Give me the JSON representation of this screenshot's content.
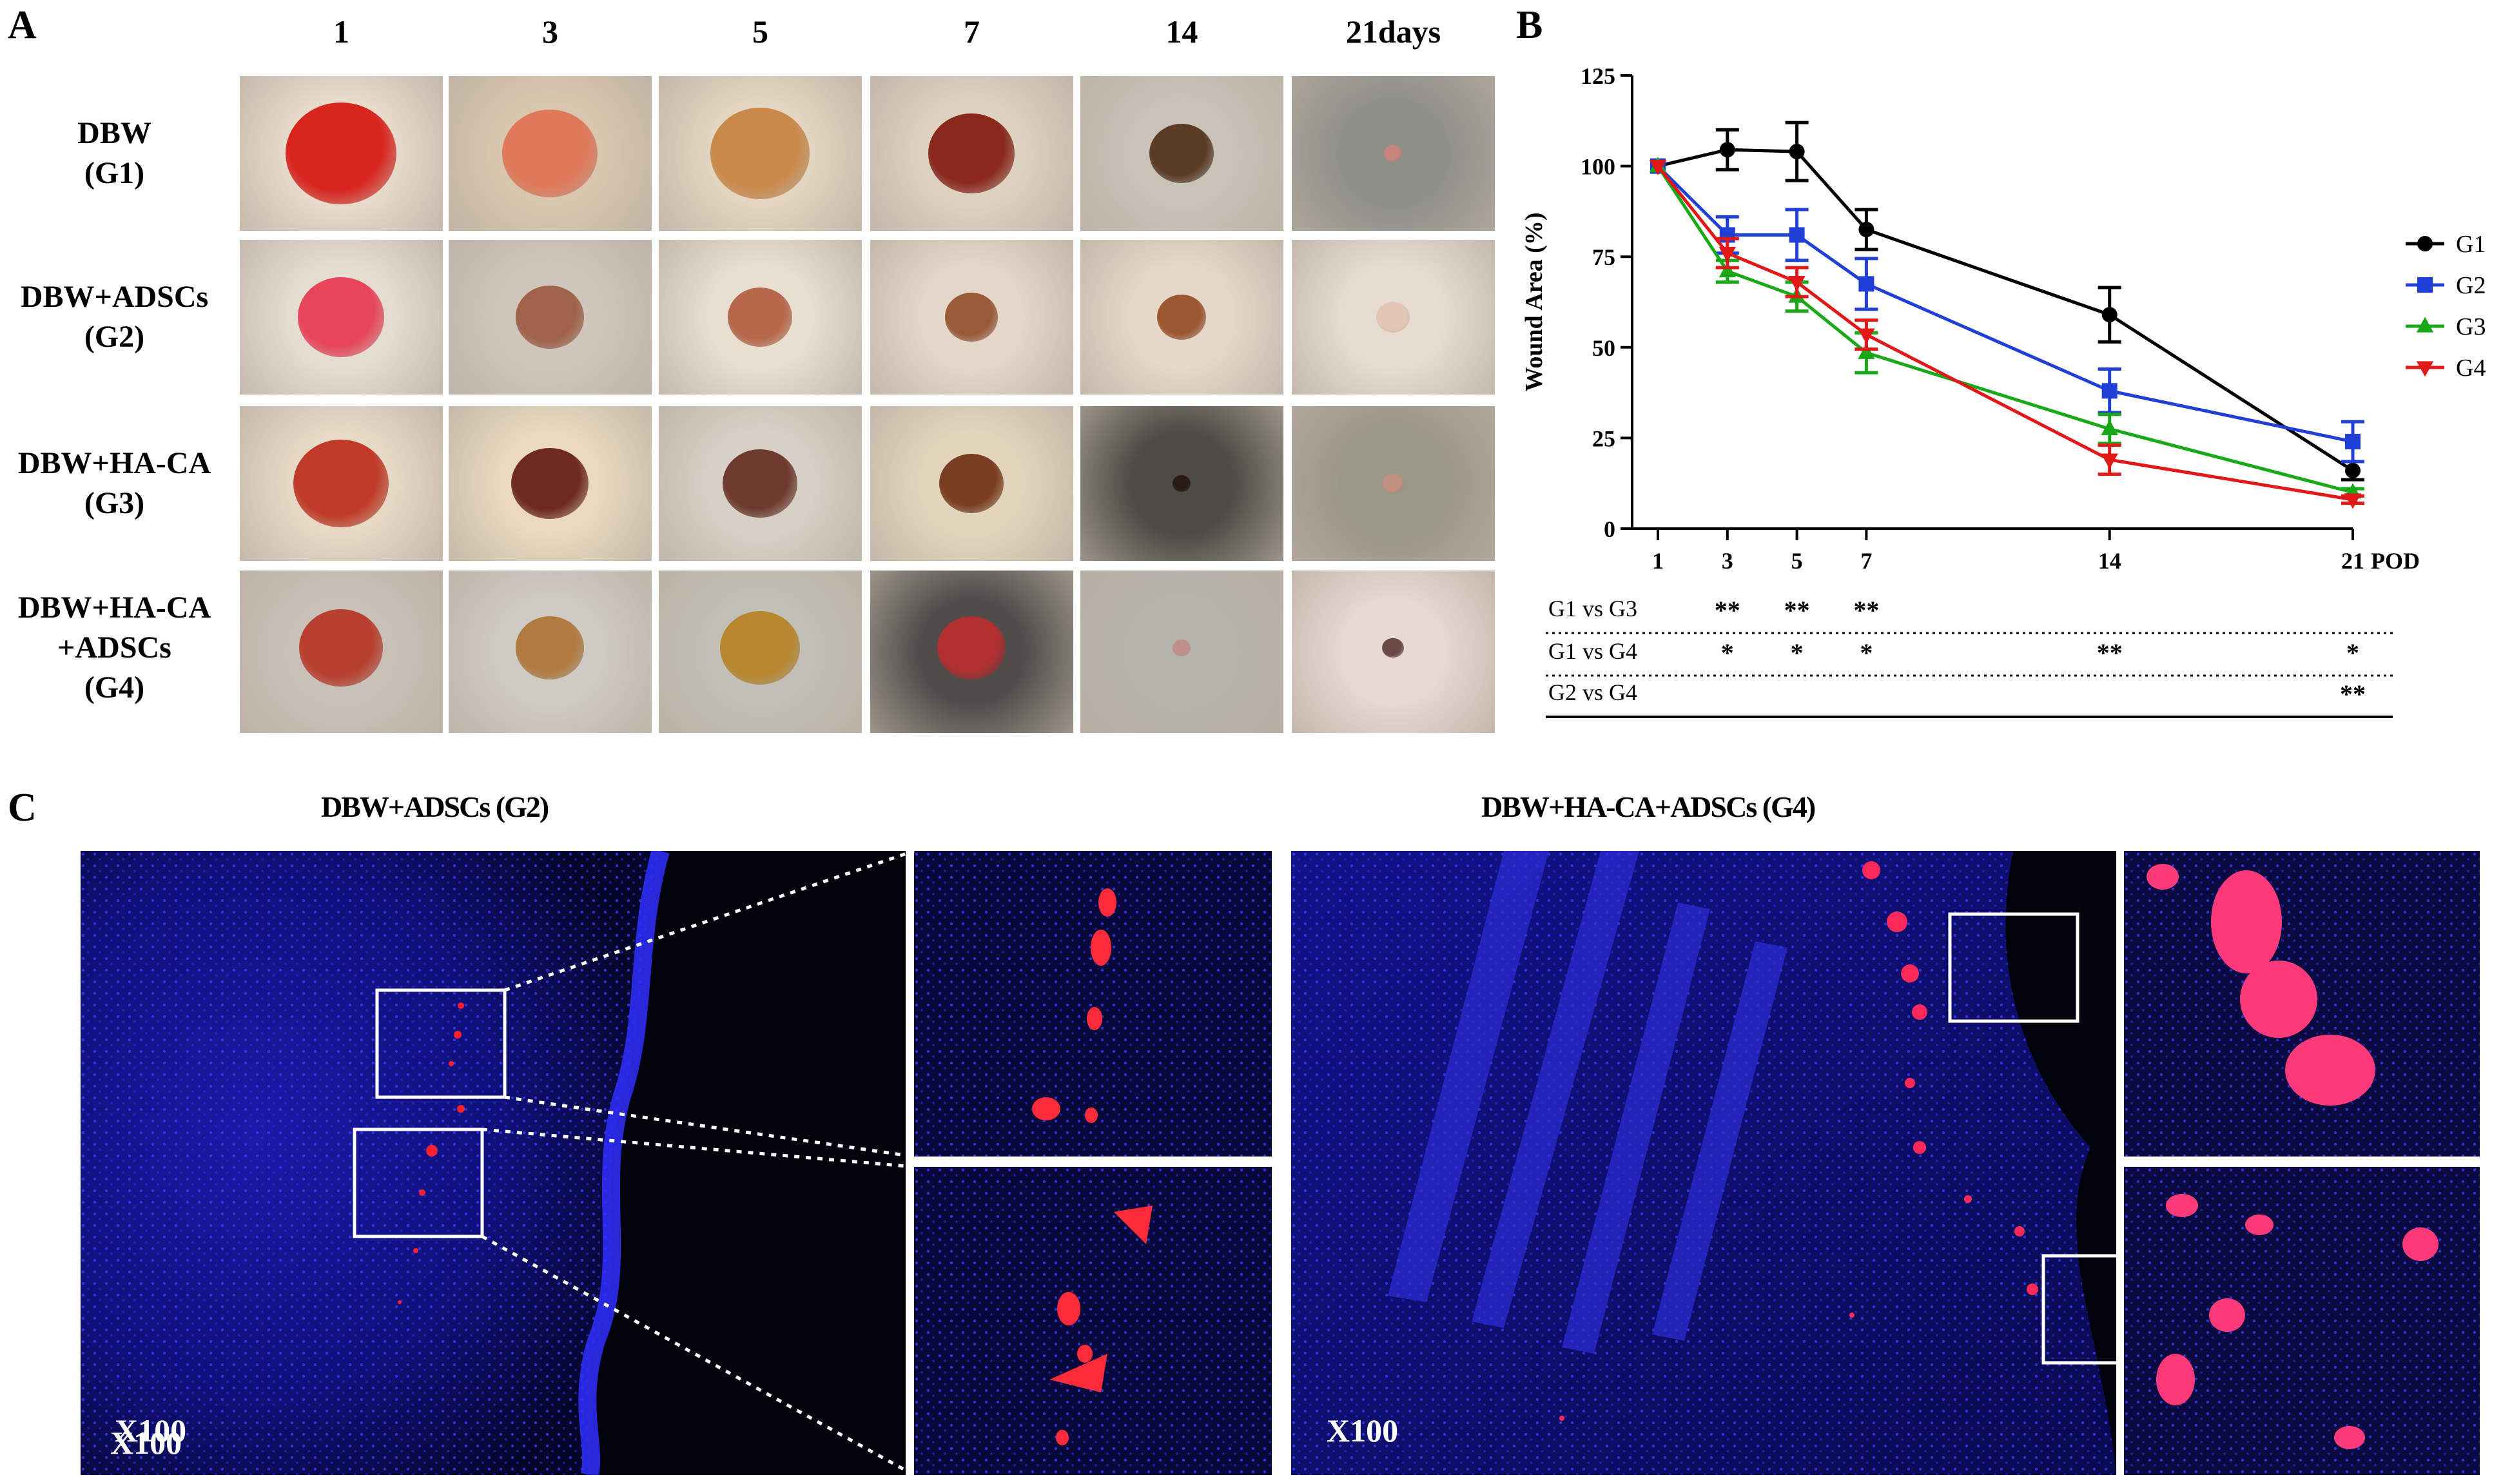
{
  "panelA": {
    "letter": "A",
    "days": [
      "1",
      "3",
      "5",
      "7",
      "14",
      "21days"
    ],
    "rows": [
      {
        "lines": [
          "DBW",
          "(G1)"
        ]
      },
      {
        "lines": [
          "DBW+ADSCs",
          "(G2)"
        ]
      },
      {
        "lines": [
          "DBW+HA-CA",
          "(G3)"
        ]
      },
      {
        "lines": [
          "DBW+HA-CA",
          "+ADSCs",
          "(G4)"
        ]
      }
    ]
  },
  "panelB": {
    "letter": "B",
    "significance": [
      {
        "label": "G1 vs G3",
        "marks": [
          {
            "x": 3,
            "text": "**"
          },
          {
            "x": 5,
            "text": "**"
          },
          {
            "x": 7,
            "text": "**"
          }
        ]
      },
      {
        "label": "G1 vs G4",
        "marks": [
          {
            "x": 3,
            "text": "*"
          },
          {
            "x": 5,
            "text": "*"
          },
          {
            "x": 7,
            "text": "*"
          },
          {
            "x": 14,
            "text": "**"
          },
          {
            "x": 21,
            "text": "*"
          }
        ]
      },
      {
        "label": "G2 vs G4",
        "marks": [
          {
            "x": 21,
            "text": "**"
          }
        ]
      }
    ]
  },
  "panelC": {
    "letter": "C",
    "left_title": "DBW+ADSCs (G2)",
    "right_title": "DBW+HA-CA+ADSCs (G4)",
    "magnification": "X100"
  },
  "chart_data": {
    "type": "line",
    "title": "",
    "xlabel": "POD",
    "ylabel": "Wound Area (%)",
    "x": [
      1,
      3,
      5,
      7,
      14,
      21
    ],
    "x_ticks": [
      "1",
      "3",
      "5",
      "7",
      "14",
      "21"
    ],
    "ylim": [
      0,
      125
    ],
    "y_ticks": [
      0,
      25,
      50,
      75,
      100,
      125
    ],
    "xlim": [
      1,
      21
    ],
    "legend_position": "right",
    "series": [
      {
        "name": "G1",
        "color": "#000000",
        "marker": "circle",
        "values": [
          100,
          104.5,
          104,
          82.5,
          59,
          16
        ],
        "errors": [
          0,
          5.5,
          8,
          5.5,
          7.5,
          2.5
        ]
      },
      {
        "name": "G2",
        "color": "#1f3fd6",
        "marker": "square",
        "values": [
          100,
          81,
          81,
          67.5,
          38,
          24
        ],
        "errors": [
          0,
          5,
          7,
          7,
          6,
          5.5
        ]
      },
      {
        "name": "G3",
        "color": "#18a818",
        "marker": "triangle-up",
        "values": [
          100,
          71,
          64,
          48.5,
          27.5,
          10
        ],
        "errors": [
          0,
          3,
          4,
          5.5,
          4,
          1
        ]
      },
      {
        "name": "G4",
        "color": "#e01818",
        "marker": "triangle-down",
        "values": [
          100,
          76,
          68,
          53.5,
          19,
          8
        ],
        "errors": [
          0,
          4,
          4,
          4,
          4,
          1
        ]
      }
    ]
  }
}
